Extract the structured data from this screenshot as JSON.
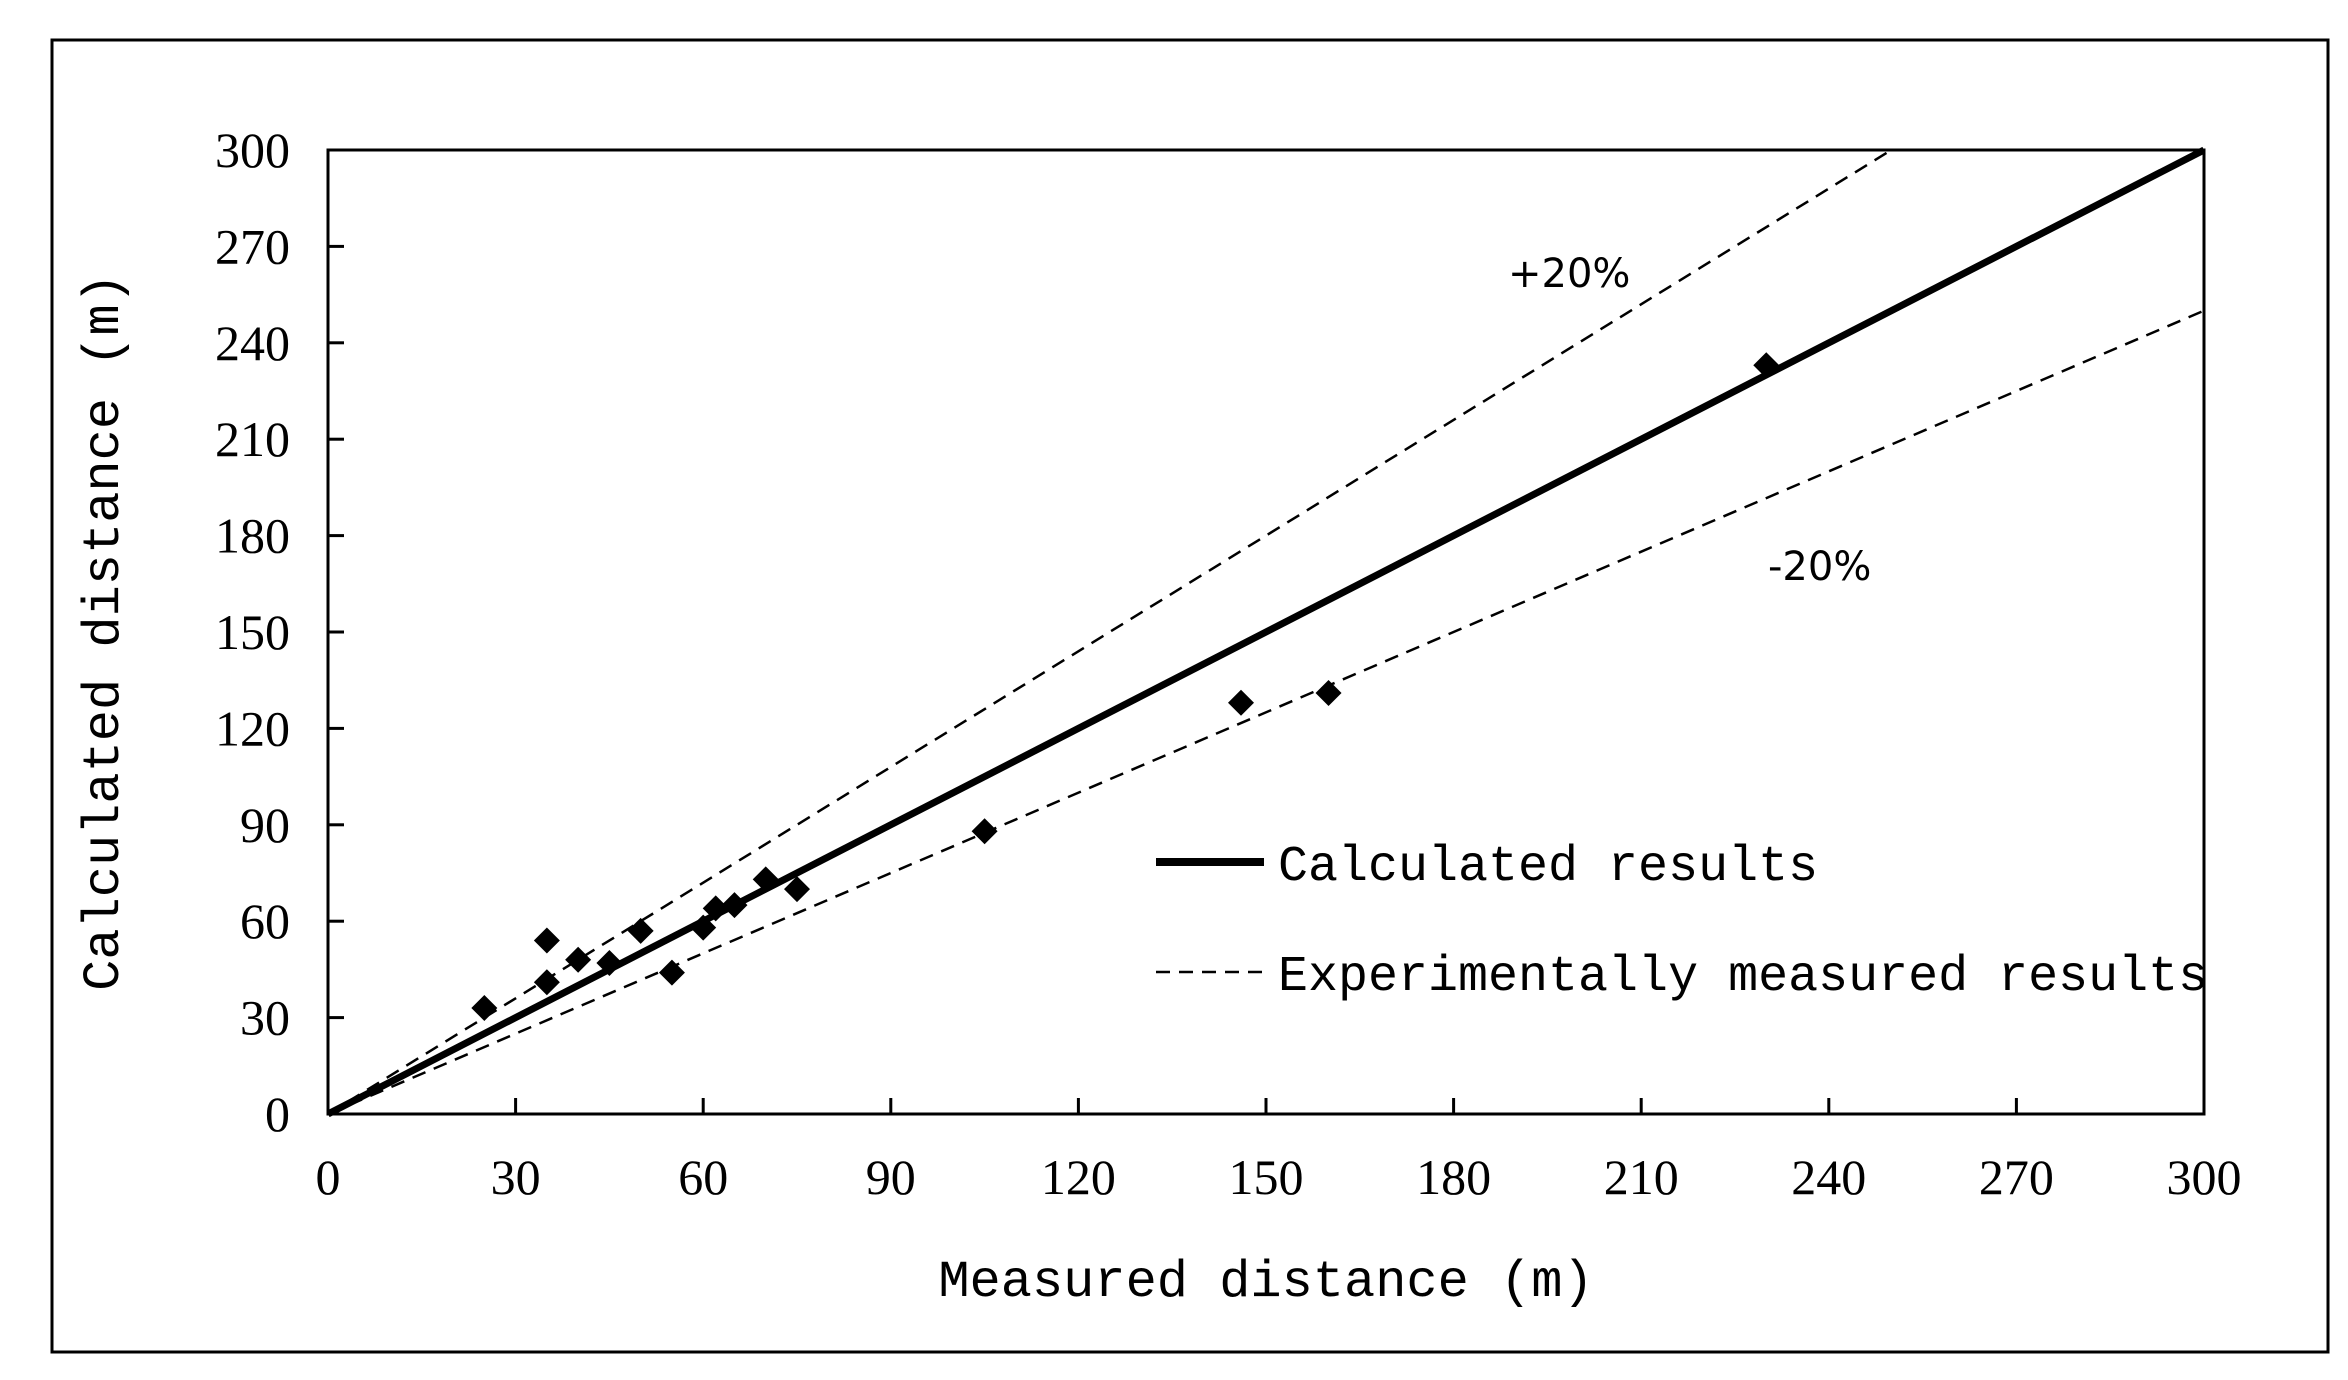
{
  "chart_data": {
    "type": "scatter",
    "title": "",
    "xlabel": "Measured distance (m)",
    "ylabel": "Calculated distance (m)",
    "xlim": [
      0,
      300
    ],
    "ylim": [
      0,
      300
    ],
    "x_ticks": [
      0,
      30,
      60,
      90,
      120,
      150,
      180,
      210,
      240,
      270,
      300
    ],
    "y_ticks": [
      0,
      30,
      60,
      90,
      120,
      150,
      180,
      210,
      240,
      270,
      300
    ],
    "grid": false,
    "legend_position": "lower-right",
    "series": [
      {
        "name": "Calculated results",
        "kind": "line",
        "style": "solid",
        "color": "#000000",
        "x": [
          0,
          300
        ],
        "y": [
          0,
          300
        ]
      },
      {
        "name": "Experimentally measured results",
        "kind": "line",
        "style": "dashed",
        "color": "#000000",
        "x": [
          0,
          250
        ],
        "y": [
          0,
          300
        ],
        "annotation": "+20%"
      },
      {
        "name": "-20% bound",
        "kind": "line",
        "style": "dashed",
        "color": "#000000",
        "x": [
          0,
          300
        ],
        "y": [
          0,
          250
        ],
        "annotation": "-20%"
      },
      {
        "name": "data points",
        "kind": "scatter",
        "marker": "diamond",
        "color": "#000000",
        "points": [
          {
            "x": 25,
            "y": 33
          },
          {
            "x": 35,
            "y": 54
          },
          {
            "x": 35,
            "y": 41
          },
          {
            "x": 40,
            "y": 48
          },
          {
            "x": 45,
            "y": 47
          },
          {
            "x": 50,
            "y": 57
          },
          {
            "x": 55,
            "y": 44
          },
          {
            "x": 60,
            "y": 58
          },
          {
            "x": 62,
            "y": 64
          },
          {
            "x": 65,
            "y": 65
          },
          {
            "x": 70,
            "y": 73
          },
          {
            "x": 75,
            "y": 70
          },
          {
            "x": 105,
            "y": 88
          },
          {
            "x": 146,
            "y": 128
          },
          {
            "x": 160,
            "y": 131
          },
          {
            "x": 230,
            "y": 233
          }
        ]
      }
    ],
    "legend": [
      {
        "label": "Calculated results",
        "style": "solid"
      },
      {
        "label": "Experimentally measured results",
        "style": "dashed"
      }
    ],
    "annotations": [
      {
        "text": "+20%"
      },
      {
        "text": "-20%"
      }
    ]
  }
}
